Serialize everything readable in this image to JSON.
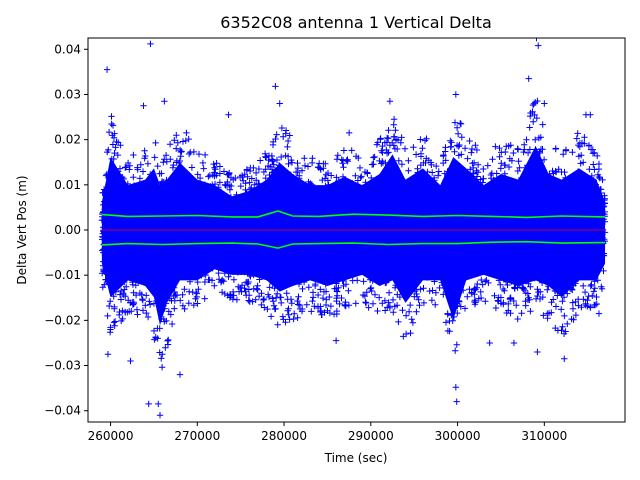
{
  "chart_data": {
    "type": "scatter",
    "title": "6352C08 antenna 1 Vertical Delta",
    "xlabel": "Time (sec)",
    "ylabel": "Delta Vert Pos (m)",
    "xlim": [
      257400,
      319300
    ],
    "ylim": [
      -0.0425,
      0.0425
    ],
    "xticks": [
      260000,
      270000,
      280000,
      290000,
      300000,
      310000
    ],
    "xtick_labels": [
      "260000",
      "270000",
      "280000",
      "290000",
      "300000",
      "310000"
    ],
    "yticks": [
      -0.04,
      -0.03,
      -0.02,
      -0.01,
      0.0,
      0.01,
      0.02,
      0.03,
      0.04
    ],
    "ytick_labels": [
      "−0.04",
      "−0.03",
      "−0.02",
      "−0.01",
      "0.00",
      "0.01",
      "0.02",
      "0.03",
      "0.04"
    ],
    "grid": false,
    "colors": {
      "scatter": "#0000ff",
      "sigma": "#00ff00",
      "zero": "#ff0000"
    },
    "series": [
      {
        "marker": "+",
        "x_range": [
          259000,
          317000
        ],
        "envelope": {
          "x": [
            259000,
            260000,
            262000,
            264000,
            265000,
            265700,
            266500,
            268000,
            270000,
            272000,
            274000,
            276000,
            278000,
            279500,
            281000,
            283000,
            285000,
            287000,
            289000,
            291000,
            292500,
            294000,
            296000,
            298000,
            299500,
            301000,
            303000,
            305000,
            307000,
            309000,
            310500,
            312000,
            314000,
            316000,
            317000
          ],
          "upper": [
            0.01,
            0.026,
            0.016,
            0.018,
            0.022,
            0.016,
            0.018,
            0.024,
            0.018,
            0.016,
            0.012,
            0.014,
            0.018,
            0.024,
            0.02,
            0.016,
            0.016,
            0.019,
            0.016,
            0.02,
            0.027,
            0.018,
            0.022,
            0.016,
            0.026,
            0.022,
            0.016,
            0.02,
            0.018,
            0.03,
            0.02,
            0.018,
            0.022,
            0.018,
            0.01
          ],
          "lower": [
            -0.012,
            -0.024,
            -0.018,
            -0.02,
            -0.024,
            -0.034,
            -0.026,
            -0.018,
            -0.018,
            -0.014,
            -0.016,
            -0.016,
            -0.018,
            -0.022,
            -0.02,
            -0.018,
            -0.02,
            -0.018,
            -0.016,
            -0.02,
            -0.018,
            -0.026,
            -0.018,
            -0.018,
            -0.032,
            -0.018,
            -0.016,
            -0.018,
            -0.02,
            -0.018,
            -0.02,
            -0.024,
            -0.018,
            -0.018,
            -0.012
          ]
        },
        "outliers": [
          [
            259600,
            0.0355
          ],
          [
            264600,
            0.0412
          ],
          [
            263800,
            0.0275
          ],
          [
            266200,
            0.0285
          ],
          [
            268000,
            -0.032
          ],
          [
            262300,
            -0.029
          ],
          [
            264400,
            -0.0385
          ],
          [
            265500,
            -0.0385
          ],
          [
            265700,
            -0.041
          ],
          [
            279000,
            0.0318
          ],
          [
            279500,
            0.028
          ],
          [
            292200,
            0.0285
          ],
          [
            299800,
            0.03
          ],
          [
            299900,
            -0.038
          ],
          [
            299800,
            -0.0348
          ],
          [
            303700,
            -0.025
          ],
          [
            306500,
            -0.025
          ],
          [
            309100,
            0.0425
          ],
          [
            309300,
            0.0408
          ],
          [
            309200,
            -0.027
          ],
          [
            308200,
            0.0335
          ],
          [
            310000,
            0.028
          ],
          [
            312300,
            -0.0285
          ],
          [
            314800,
            0.0255
          ],
          [
            315300,
            0.0255
          ],
          [
            273600,
            0.0255
          ],
          [
            287500,
            0.0215
          ],
          [
            286000,
            -0.0245
          ],
          [
            259700,
            -0.0275
          ],
          [
            316300,
            -0.0185
          ]
        ]
      },
      {
        "name_visible": false,
        "line": "upper sigma",
        "x": [
          259000,
          262000,
          266000,
          270000,
          274000,
          277000,
          279300,
          281000,
          284000,
          288000,
          292000,
          296000,
          300000,
          304000,
          308000,
          312000,
          317000
        ],
        "y": [
          0.0034,
          0.003,
          0.0031,
          0.0032,
          0.0029,
          0.0029,
          0.0042,
          0.0031,
          0.003,
          0.0035,
          0.0033,
          0.003,
          0.0032,
          0.003,
          0.0028,
          0.0031,
          0.0029
        ]
      },
      {
        "line": "lower sigma",
        "x": [
          259000,
          262000,
          266000,
          270000,
          274000,
          277000,
          279300,
          281000,
          284000,
          288000,
          292000,
          296000,
          300000,
          304000,
          308000,
          312000,
          317000
        ],
        "y": [
          -0.0033,
          -0.003,
          -0.0032,
          -0.003,
          -0.0029,
          -0.0031,
          -0.004,
          -0.0031,
          -0.003,
          -0.0029,
          -0.0032,
          -0.003,
          -0.003,
          -0.0027,
          -0.0026,
          -0.0029,
          -0.0028
        ]
      },
      {
        "line": "zero",
        "x": [
          259000,
          317000
        ],
        "y": [
          0.0,
          0.0
        ]
      }
    ]
  }
}
